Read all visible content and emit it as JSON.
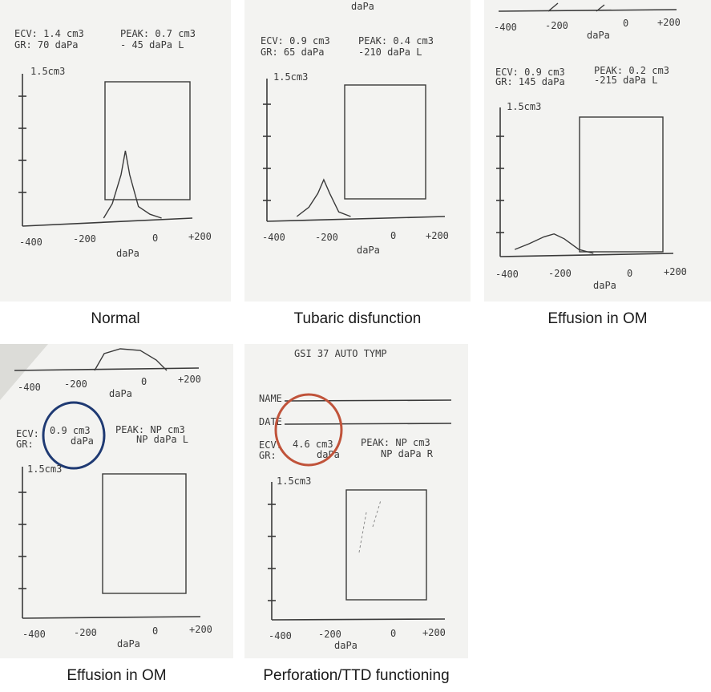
{
  "colors": {
    "panel_bg": "#f3f3f1",
    "ink": "#3a3a3a",
    "highlight_blue": "#1f3a73",
    "highlight_red": "#c0533a"
  },
  "chart_data": [
    {
      "type": "line",
      "caption": "Normal",
      "readout": {
        "ecv": "ECV: 1.4 cm3",
        "peak": "PEAK: 0.7 cm3",
        "gr": "GR:  70 daPa",
        "peak_pressure": "- 45 daPa  L"
      },
      "y_label": "1.5cm3",
      "x_ticks": [
        "-400",
        "-200",
        "0",
        "+200"
      ],
      "xlabel": "daPa",
      "xlim": [
        -400,
        200
      ],
      "ylim": [
        0,
        1.5
      ],
      "x": [
        -120,
        -90,
        -60,
        -45,
        -30,
        0,
        40,
        80
      ],
      "y": [
        0.0,
        0.15,
        0.45,
        0.7,
        0.45,
        0.12,
        0.04,
        0.0
      ]
    },
    {
      "type": "line",
      "caption": "Tubaric disfunction",
      "header_partial": "daPa",
      "readout": {
        "ecv": "ECV: 0.9 cm3",
        "peak": "PEAK: 0.4 cm3",
        "gr": "GR:  65 daPa",
        "peak_pressure": "-210 daPa  L"
      },
      "y_label": "1.5cm3",
      "x_ticks": [
        "-400",
        "-200",
        "0",
        "+200"
      ],
      "xlabel": "daPa",
      "xlim": [
        -400,
        200
      ],
      "ylim": [
        0,
        1.5
      ],
      "x": [
        -300,
        -260,
        -230,
        -210,
        -190,
        -160,
        -120
      ],
      "y": [
        0.0,
        0.1,
        0.25,
        0.4,
        0.25,
        0.05,
        0.0
      ]
    },
    {
      "type": "line",
      "caption": "Effusion in OM",
      "header_ticks": [
        "-400",
        "-200",
        "0",
        "+200"
      ],
      "header_xlabel": "daPa",
      "readout": {
        "ecv": "ECV: 0.9 cm3",
        "peak": "PEAK: 0.2 cm3",
        "gr": "GR: 145 daPa",
        "peak_pressure": "-215 daPa  L"
      },
      "y_label": "1.5cm3",
      "x_ticks": [
        "-400",
        "-200",
        "0",
        "+200"
      ],
      "xlabel": "daPa",
      "xlim": [
        -400,
        200
      ],
      "ylim": [
        0,
        1.5
      ],
      "x": [
        -350,
        -300,
        -250,
        -215,
        -180,
        -130,
        -80
      ],
      "y": [
        0.04,
        0.1,
        0.17,
        0.2,
        0.15,
        0.04,
        0.0
      ]
    },
    {
      "type": "line",
      "caption": "Effusion in OM",
      "header_ticks": [
        "-400",
        "-200",
        "0",
        "+200"
      ],
      "header_xlabel": "daPa",
      "readout": {
        "ecv": "ECV:",
        "ecv_value": "0.9 cm3",
        "peak": "PEAK:  NP cm3",
        "gr": "GR:",
        "gr_value": "daPa",
        "peak_pressure": "NP daPa  L"
      },
      "y_label": "1.5cm3",
      "x_ticks": [
        "-400",
        "-200",
        "0",
        "+200"
      ],
      "xlabel": "daPa",
      "xlim": [
        -400,
        200
      ],
      "ylim": [
        0,
        1.5
      ],
      "x": [],
      "y": []
    },
    {
      "type": "line",
      "caption": "Perforation/TTD functioning",
      "header": "GSI 37  AUTO TYMP",
      "fields": {
        "name": "NAME",
        "date": "DATE"
      },
      "readout": {
        "ecv": "ECV:",
        "ecv_value": "4.6 cm3",
        "peak": "PEAK:  NP cm3",
        "gr": "GR:",
        "gr_value": "daPa",
        "peak_pressure": "NP daPa  R"
      },
      "y_label": "1.5cm3",
      "x_ticks": [
        "-400",
        "-200",
        "0",
        "+200"
      ],
      "xlabel": "daPa",
      "xlim": [
        -400,
        200
      ],
      "ylim": [
        0,
        1.5
      ],
      "x": [],
      "y": []
    }
  ]
}
